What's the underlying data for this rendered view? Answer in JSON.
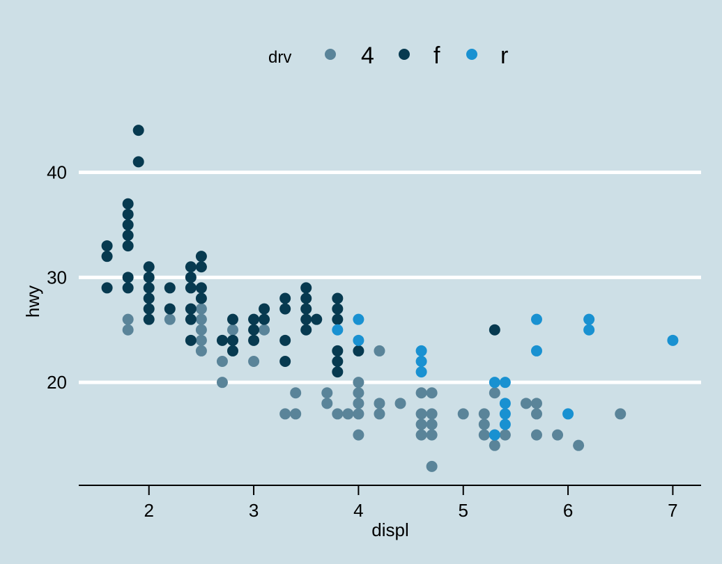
{
  "chart_data": {
    "type": "scatter",
    "xlabel": "displ",
    "ylabel": "hwy",
    "xlim": [
      1.33,
      7.27
    ],
    "ylim": [
      10.2,
      45.8
    ],
    "x_ticks": [
      2,
      3,
      4,
      5,
      6,
      7
    ],
    "y_ticks": [
      20,
      30,
      40
    ],
    "grid": "horizontal major lines, white",
    "legend": {
      "title": "drv",
      "position": "top",
      "entries": [
        "4",
        "f",
        "r"
      ]
    },
    "colors": {
      "4": "#5a8499",
      "f": "#073a50",
      "r": "#1991d1",
      "background": "#cddfe6"
    },
    "series": [
      {
        "name": "4",
        "points": [
          [
            1.8,
            26
          ],
          [
            1.8,
            25
          ],
          [
            2.2,
            26
          ],
          [
            2.5,
            27
          ],
          [
            2.5,
            26
          ],
          [
            2.5,
            25
          ],
          [
            2.5,
            24
          ],
          [
            2.5,
            23
          ],
          [
            2.7,
            22
          ],
          [
            2.7,
            20
          ],
          [
            2.8,
            25
          ],
          [
            2.8,
            24
          ],
          [
            3.0,
            22
          ],
          [
            3.1,
            25
          ],
          [
            3.3,
            17
          ],
          [
            3.4,
            19
          ],
          [
            3.4,
            17
          ],
          [
            3.7,
            19
          ],
          [
            3.7,
            18
          ],
          [
            3.8,
            17
          ],
          [
            3.9,
            17
          ],
          [
            4.0,
            20
          ],
          [
            4.0,
            19
          ],
          [
            4.0,
            18
          ],
          [
            4.0,
            17
          ],
          [
            4.0,
            15
          ],
          [
            4.2,
            18
          ],
          [
            4.2,
            17
          ],
          [
            4.2,
            23
          ],
          [
            4.4,
            18
          ],
          [
            4.6,
            19
          ],
          [
            4.6,
            17
          ],
          [
            4.6,
            16
          ],
          [
            4.6,
            15
          ],
          [
            4.7,
            19
          ],
          [
            4.7,
            17
          ],
          [
            4.7,
            16
          ],
          [
            4.7,
            15
          ],
          [
            4.7,
            12
          ],
          [
            5.0,
            17
          ],
          [
            5.2,
            17
          ],
          [
            5.2,
            16
          ],
          [
            5.2,
            15
          ],
          [
            5.3,
            19
          ],
          [
            5.3,
            15
          ],
          [
            5.3,
            14
          ],
          [
            5.4,
            15
          ],
          [
            5.6,
            18
          ],
          [
            5.7,
            18
          ],
          [
            5.7,
            17
          ],
          [
            5.7,
            15
          ],
          [
            5.9,
            15
          ],
          [
            6.1,
            14
          ],
          [
            6.5,
            17
          ]
        ]
      },
      {
        "name": "f",
        "points": [
          [
            1.6,
            33
          ],
          [
            1.6,
            32
          ],
          [
            1.6,
            29
          ],
          [
            1.8,
            37
          ],
          [
            1.8,
            36
          ],
          [
            1.8,
            35
          ],
          [
            1.8,
            34
          ],
          [
            1.8,
            33
          ],
          [
            1.8,
            30
          ],
          [
            1.8,
            29
          ],
          [
            1.9,
            44
          ],
          [
            1.9,
            41
          ],
          [
            2.0,
            31
          ],
          [
            2.0,
            30
          ],
          [
            2.0,
            29
          ],
          [
            2.0,
            28
          ],
          [
            2.0,
            27
          ],
          [
            2.0,
            26
          ],
          [
            2.2,
            29
          ],
          [
            2.2,
            27
          ],
          [
            2.4,
            31
          ],
          [
            2.4,
            30
          ],
          [
            2.4,
            29
          ],
          [
            2.4,
            27
          ],
          [
            2.4,
            26
          ],
          [
            2.4,
            24
          ],
          [
            2.5,
            32
          ],
          [
            2.5,
            31
          ],
          [
            2.5,
            29
          ],
          [
            2.5,
            28
          ],
          [
            2.7,
            24
          ],
          [
            2.8,
            26
          ],
          [
            2.8,
            24
          ],
          [
            2.8,
            23
          ],
          [
            3.0,
            26
          ],
          [
            3.0,
            25
          ],
          [
            3.0,
            24
          ],
          [
            3.1,
            27
          ],
          [
            3.1,
            26
          ],
          [
            3.3,
            28
          ],
          [
            3.3,
            27
          ],
          [
            3.3,
            24
          ],
          [
            3.3,
            22
          ],
          [
            3.5,
            29
          ],
          [
            3.5,
            28
          ],
          [
            3.5,
            27
          ],
          [
            3.5,
            26
          ],
          [
            3.5,
            25
          ],
          [
            3.6,
            26
          ],
          [
            3.8,
            28
          ],
          [
            3.8,
            27
          ],
          [
            3.8,
            26
          ],
          [
            3.8,
            23
          ],
          [
            3.8,
            22
          ],
          [
            3.8,
            21
          ],
          [
            4.0,
            23
          ],
          [
            5.3,
            25
          ]
        ]
      },
      {
        "name": "r",
        "points": [
          [
            3.8,
            25
          ],
          [
            4.0,
            26
          ],
          [
            4.0,
            24
          ],
          [
            4.6,
            23
          ],
          [
            4.6,
            22
          ],
          [
            4.6,
            21
          ],
          [
            5.3,
            20
          ],
          [
            5.3,
            15
          ],
          [
            5.4,
            20
          ],
          [
            5.4,
            18
          ],
          [
            5.4,
            17
          ],
          [
            5.4,
            16
          ],
          [
            5.7,
            26
          ],
          [
            5.7,
            23
          ],
          [
            6.0,
            17
          ],
          [
            6.2,
            26
          ],
          [
            6.2,
            25
          ],
          [
            7.0,
            24
          ]
        ]
      }
    ]
  }
}
